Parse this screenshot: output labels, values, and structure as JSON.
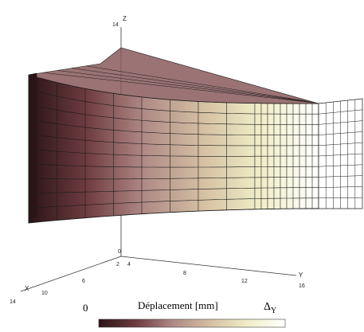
{
  "axes": {
    "z": {
      "name": "Z",
      "ticks": [
        "0",
        "14"
      ]
    },
    "y": {
      "name": "Y",
      "ticks": [
        "2",
        "4",
        "8",
        "12",
        "16"
      ]
    },
    "x": {
      "name": "X",
      "ticks": [
        "6",
        "10",
        "14"
      ]
    }
  },
  "legend": {
    "title": "Déplacement [mm]",
    "min_label": "0",
    "max_label": "Δ",
    "max_subscript": "Y",
    "colors": [
      "#2a1416",
      "#6e3c40",
      "#b08a86",
      "#d4c0a2",
      "#f0eec8",
      "#ffffff"
    ]
  },
  "mesh": {
    "edge_color": "#1a1a1a"
  }
}
